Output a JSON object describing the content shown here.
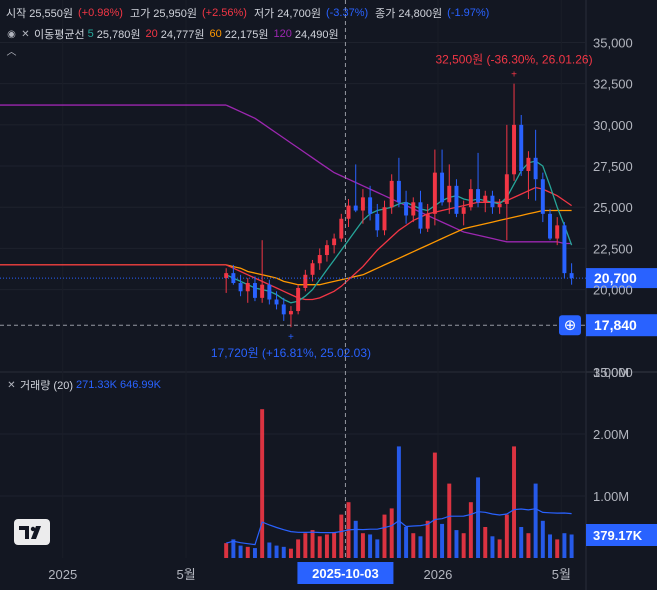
{
  "ohlc_legend": {
    "open_label": "시작",
    "open_value": "25,550원",
    "open_change": "(+0.98%)",
    "high_label": "고가",
    "high_value": "25,950원",
    "high_change": "(+2.56%)",
    "low_label": "저가",
    "low_value": "24,700원",
    "low_change": "(-3.37%)",
    "close_label": "종가",
    "close_value": "24,800원",
    "close_change": "(-1.97%)"
  },
  "ma_legend": {
    "title": "이동평균선",
    "ma5_period": "5",
    "ma5_value": "25,780원",
    "ma20_period": "20",
    "ma20_value": "24,777원",
    "ma60_period": "60",
    "ma60_value": "22,175원",
    "ma120_period": "120",
    "ma120_value": "24,490원"
  },
  "volume_legend": {
    "title": "거래량 (20)",
    "v1": "271.33K",
    "v2": "646.99K"
  },
  "annotations": {
    "high_marker": "32,500원 (-36.30%, 26.01.26)",
    "low_marker": "17,720원 (+16.81%, 25.02.03)"
  },
  "price_axis": {
    "ticks": [
      "35,000",
      "32,500",
      "30,000",
      "27,500",
      "25,000",
      "22,500",
      "20,000",
      "15,000"
    ],
    "last_price_label": "20,700",
    "crosshair_price_label": "17,840"
  },
  "volume_axis": {
    "ticks": [
      "3.00M",
      "2.00M",
      "1.00M"
    ],
    "last_volume_label": "379.17K"
  },
  "time_axis": {
    "labels": [
      "2025",
      "5월",
      "2026",
      "5월"
    ],
    "crosshair_label": "2025-10-03"
  },
  "colors": {
    "background": "#131722",
    "up": "#f23645",
    "down": "#2962ff",
    "ma5": "#26a69a",
    "ma20": "#f23645",
    "ma60": "#ff9800",
    "ma120": "#9c27b0",
    "text": "#d1d4dc",
    "grid": "#1e222d"
  },
  "chart_data": {
    "type": "candlestick",
    "price_ylim": [
      15000,
      36000
    ],
    "volume_ylim": [
      0,
      3000000
    ],
    "x_range": [
      "2024-11-01",
      "2026-05-25"
    ],
    "candle_step_days": 7,
    "candles": [
      [
        20700,
        21300,
        19800,
        21000
      ],
      [
        21000,
        21500,
        20300,
        20400
      ],
      [
        20400,
        20900,
        19600,
        19900
      ],
      [
        19900,
        20700,
        19200,
        20400
      ],
      [
        20400,
        20800,
        19300,
        19500
      ],
      [
        19500,
        23000,
        19200,
        20300
      ],
      [
        20300,
        20600,
        19100,
        19400
      ],
      [
        19400,
        19900,
        18800,
        19100
      ],
      [
        19100,
        19500,
        18100,
        18500
      ],
      [
        18500,
        19000,
        17720,
        18700
      ],
      [
        18700,
        20300,
        18500,
        20100
      ],
      [
        20100,
        21200,
        19900,
        20900
      ],
      [
        20900,
        21800,
        20500,
        21600
      ],
      [
        21600,
        22500,
        21200,
        22100
      ],
      [
        22100,
        23000,
        21700,
        22700
      ],
      [
        22700,
        23400,
        22200,
        23100
      ],
      [
        23100,
        24600,
        22900,
        24300
      ],
      [
        24300,
        25500,
        23800,
        25100
      ],
      [
        25100,
        27600,
        24700,
        24800
      ],
      [
        24800,
        26100,
        24000,
        25600
      ],
      [
        25600,
        26300,
        24200,
        24600
      ],
      [
        24600,
        25200,
        23200,
        23600
      ],
      [
        23600,
        25400,
        23300,
        25000
      ],
      [
        25000,
        27000,
        24600,
        26600
      ],
      [
        26600,
        28000,
        25000,
        25300
      ],
      [
        25300,
        26000,
        24000,
        24500
      ],
      [
        24500,
        25600,
        24100,
        25300
      ],
      [
        25300,
        26000,
        23400,
        23700
      ],
      [
        23700,
        25200,
        23500,
        24600
      ],
      [
        24600,
        28500,
        23900,
        27100
      ],
      [
        27100,
        28500,
        25100,
        25300
      ],
      [
        25300,
        27600,
        24600,
        26300
      ],
      [
        26300,
        26700,
        24400,
        24600
      ],
      [
        24600,
        25400,
        23900,
        25000
      ],
      [
        25000,
        26700,
        24800,
        26100
      ],
      [
        26100,
        28300,
        25000,
        25300
      ],
      [
        25300,
        26000,
        24700,
        25700
      ],
      [
        25700,
        26000,
        24600,
        25000
      ],
      [
        25000,
        25500,
        24600,
        25200
      ],
      [
        25200,
        30000,
        23000,
        27000
      ],
      [
        27000,
        32500,
        26600,
        30000
      ],
      [
        30000,
        30600,
        26900,
        27200
      ],
      [
        27200,
        28400,
        25500,
        28000
      ],
      [
        28000,
        29700,
        25400,
        26700
      ],
      [
        26700,
        27100,
        24100,
        24600
      ],
      [
        24600,
        24900,
        23000,
        23100
      ],
      [
        23100,
        24400,
        22700,
        23900
      ],
      [
        23900,
        24100,
        20700,
        21000
      ],
      [
        21000,
        21600,
        20300,
        20700
      ]
    ],
    "volumes": [
      240000,
      300000,
      200000,
      180000,
      160000,
      2400000,
      250000,
      200000,
      180000,
      150000,
      300000,
      400000,
      450000,
      350000,
      380000,
      420000,
      700000,
      900000,
      600000,
      400000,
      380000,
      300000,
      700000,
      800000,
      1800000,
      500000,
      400000,
      350000,
      600000,
      1700000,
      550000,
      1200000,
      450000,
      400000,
      900000,
      1300000,
      500000,
      350000,
      300000,
      700000,
      1800000,
      500000,
      400000,
      1200000,
      600000,
      380000,
      300000,
      400000,
      379170
    ],
    "ma5": [
      20900,
      20700,
      20500,
      20300,
      20100,
      20000,
      19900,
      19700,
      19400,
      19200,
      19300,
      19600,
      20000,
      20600,
      21200,
      21800,
      22400,
      23000,
      23600,
      24200,
      24600,
      24800,
      24900,
      25000,
      25200,
      25300,
      25100,
      24900,
      24800,
      25100,
      25400,
      25600,
      25700,
      25500,
      25400,
      25500,
      25400,
      25300,
      25200,
      25600,
      26400,
      27200,
      27700,
      27800,
      27500,
      26300,
      25000,
      23900,
      22700
    ],
    "ma20": [
      21500,
      21300,
      21100,
      20900,
      20700,
      20500,
      20300,
      20100,
      19900,
      19700,
      19500,
      19400,
      19400,
      19500,
      19700,
      19900,
      20200,
      20600,
      21000,
      21400,
      21900,
      22400,
      22800,
      23200,
      23600,
      23900,
      24200,
      24400,
      24600,
      24700,
      24800,
      24900,
      25000,
      25100,
      25200,
      25300,
      25300,
      25300,
      25300,
      25400,
      25600,
      25800,
      26000,
      26200,
      26100,
      25900,
      25700,
      25400,
      25100
    ],
    "ma60": [
      21500,
      21400,
      21300,
      21100,
      21000,
      20900,
      20800,
      20700,
      20500,
      20400,
      20300,
      20300,
      20300,
      20300,
      20400,
      20500,
      20600,
      20700,
      20800,
      20900,
      21100,
      21300,
      21500,
      21700,
      21900,
      22100,
      22300,
      22500,
      22700,
      22900,
      23100,
      23300,
      23500,
      23700,
      23800,
      23900,
      24000,
      24100,
      24200,
      24300,
      24400,
      24500,
      24600,
      24700,
      24800,
      24800,
      24800,
      24800,
      24800
    ],
    "ma120": [
      31200,
      31000,
      30800,
      30600,
      30400,
      30100,
      29800,
      29500,
      29200,
      28900,
      28600,
      28300,
      28000,
      27700,
      27400,
      27100,
      26900,
      26700,
      26500,
      26300,
      26100,
      25900,
      25700,
      25500,
      25300,
      25100,
      24900,
      24700,
      24500,
      24300,
      24100,
      23900,
      23700,
      23500,
      23400,
      23300,
      23200,
      23100,
      23000,
      22900,
      22900,
      22900,
      22900,
      22900,
      22900,
      22900,
      22900,
      22800,
      22800
    ]
  }
}
